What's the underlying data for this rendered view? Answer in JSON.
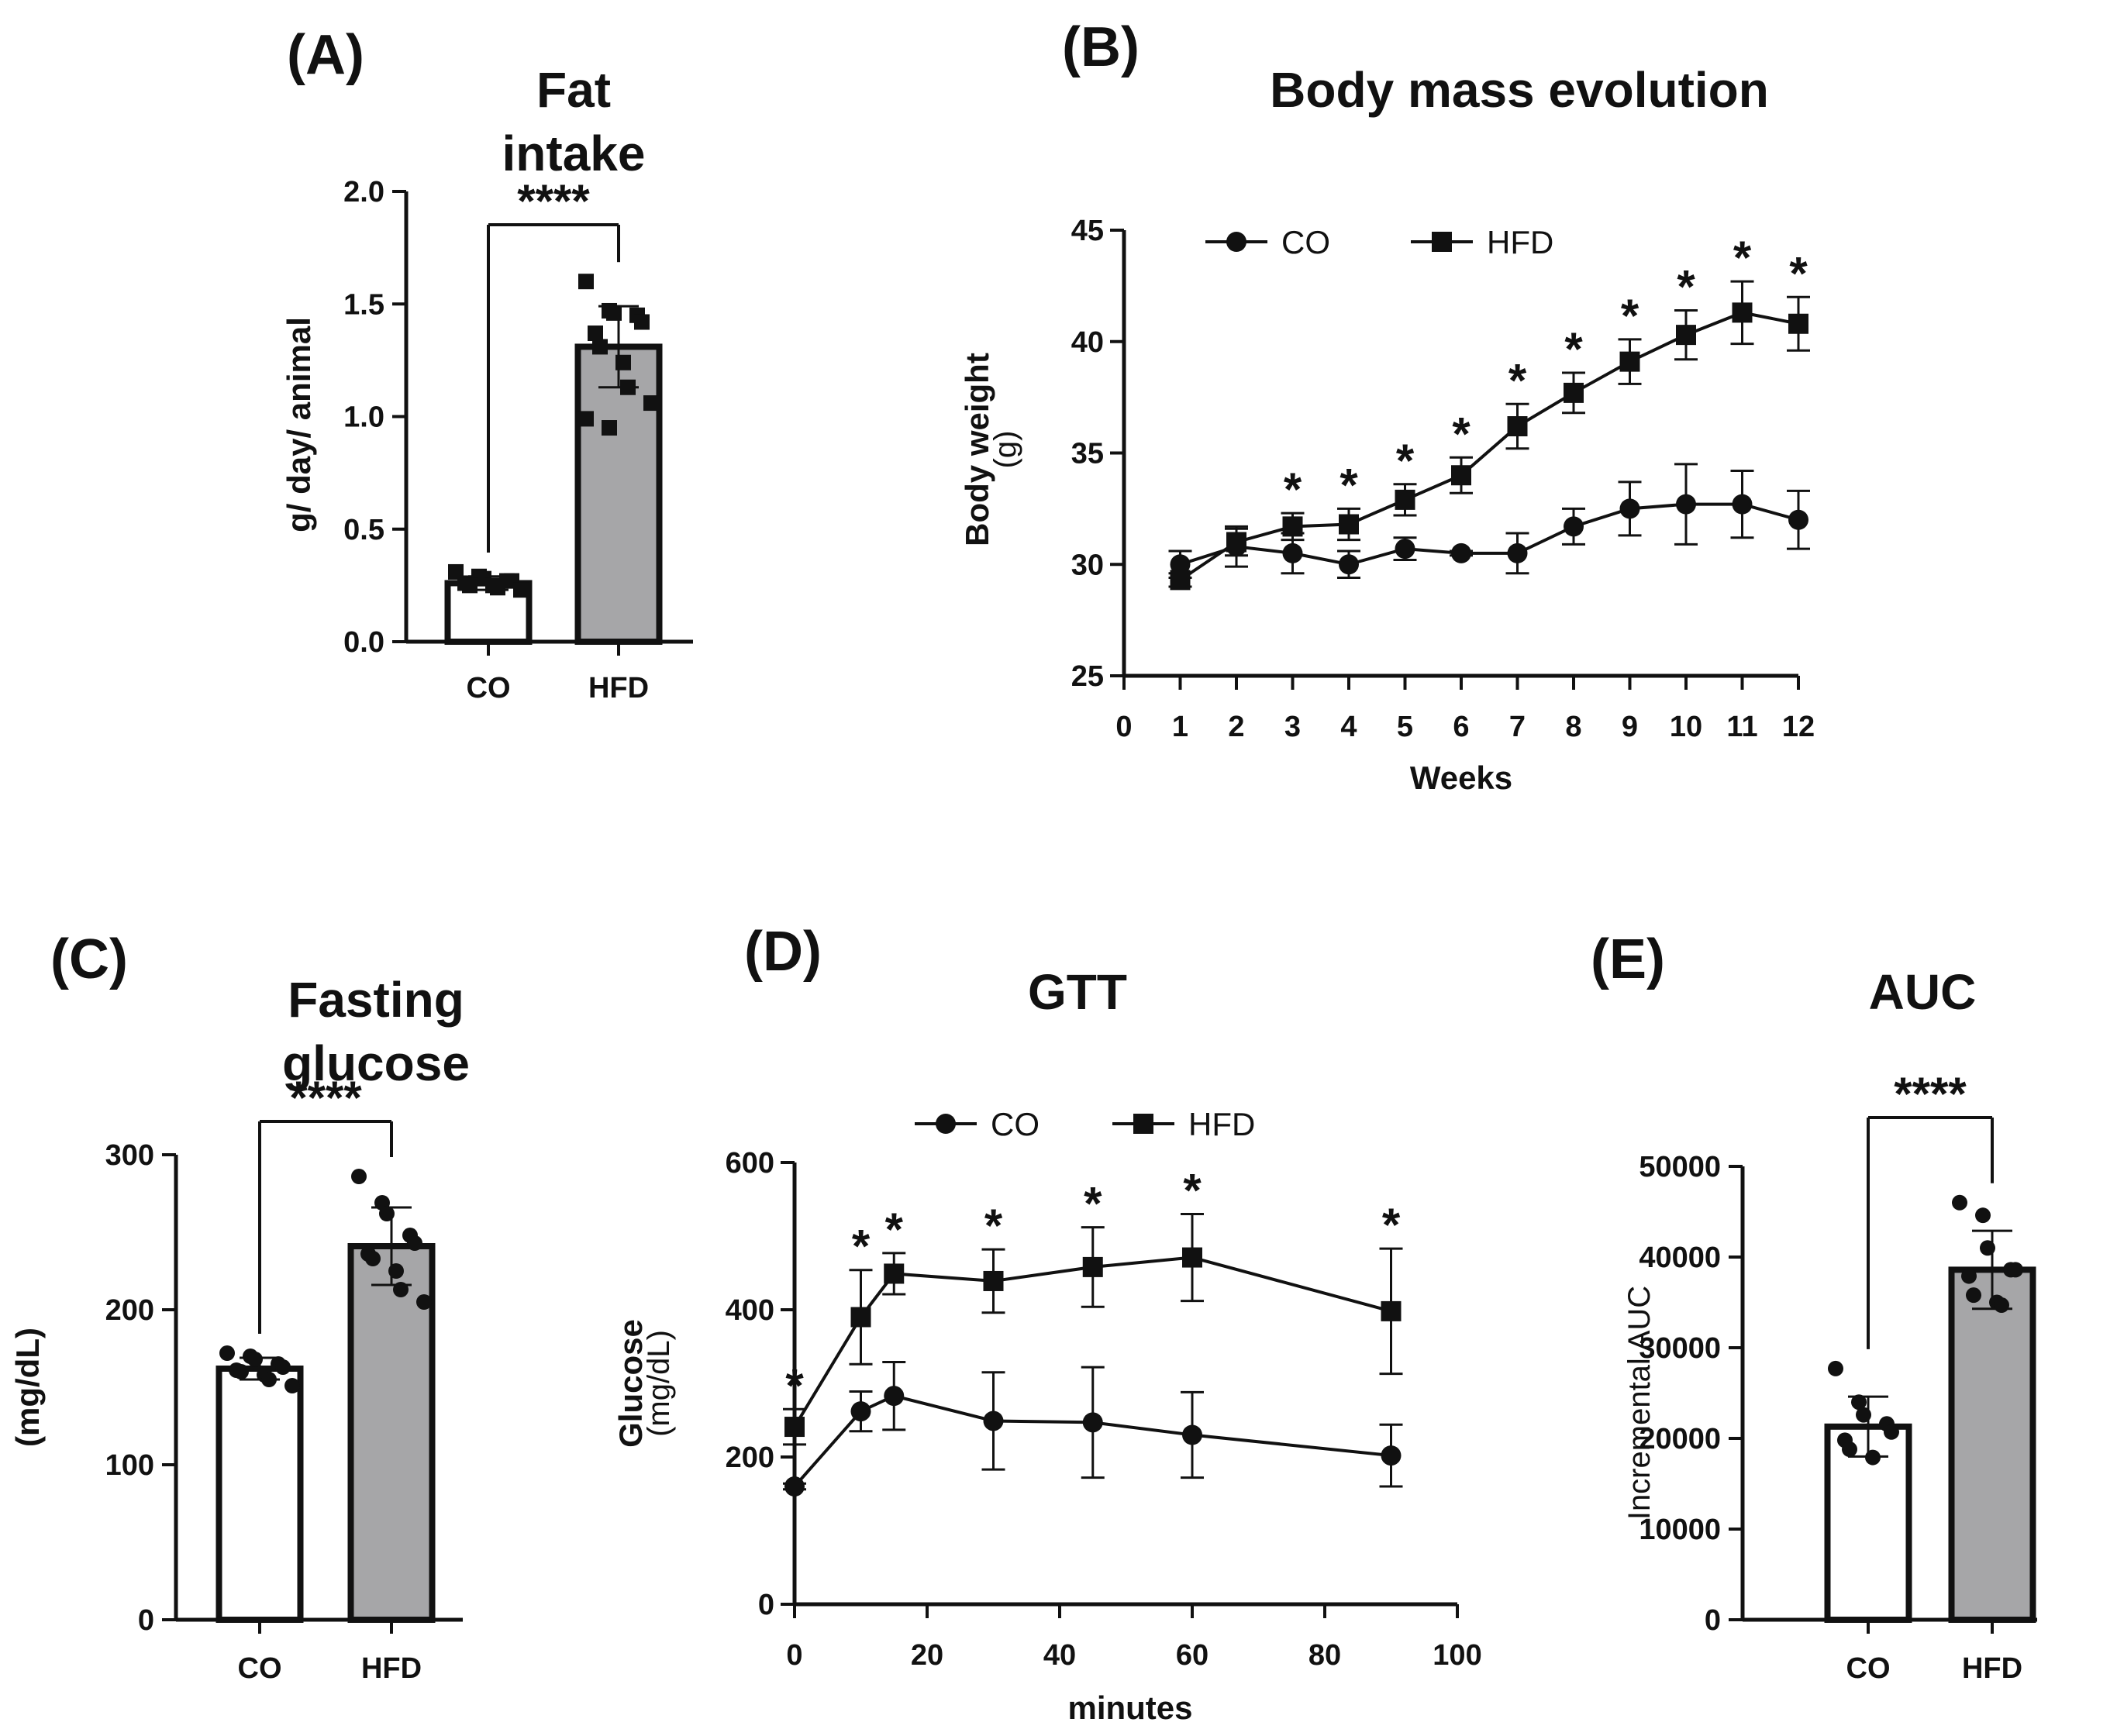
{
  "figure": {
    "panels": [
      "(A)",
      "(B)",
      "(C)",
      "(D)",
      "(E)"
    ]
  },
  "chart_data": [
    {
      "id": "A",
      "type": "bar",
      "panel_label": "(A)",
      "title_lines": [
        "Fat",
        "intake"
      ],
      "categories": [
        "CO",
        "HFD"
      ],
      "values": [
        0.26,
        1.31
      ],
      "sd": [
        0.03,
        0.18
      ],
      "points": [
        [
          0.31,
          0.29,
          0.28,
          0.27,
          0.27,
          0.26,
          0.25,
          0.25,
          0.24,
          0.23
        ],
        [
          1.6,
          1.47,
          1.46,
          1.45,
          1.42,
          1.37,
          1.31,
          1.24,
          1.13,
          1.06,
          0.99,
          0.95
        ]
      ],
      "bar_colors": [
        "#ffffff",
        "#a6a6a8"
      ],
      "ylabel": "g/ day/ animal",
      "ylim": [
        0,
        2.0
      ],
      "yticks": [
        0,
        0.5,
        1.0,
        1.5,
        2.0
      ],
      "ytick_labels": [
        "0.0",
        "0.5",
        "1.0",
        "1.5",
        "2.0"
      ],
      "significance": "****",
      "marker": "square"
    },
    {
      "id": "B",
      "type": "line",
      "panel_label": "(B)",
      "title": "Body mass evolution",
      "xlabel": "Weeks",
      "ylabel": "Body weight",
      "ylabel_unit": "(g)",
      "xlim": [
        0,
        12
      ],
      "ylim": [
        25,
        45
      ],
      "xticks": [
        0,
        1,
        2,
        3,
        4,
        5,
        6,
        7,
        8,
        9,
        10,
        11,
        12
      ],
      "yticks": [
        25,
        30,
        35,
        40,
        45
      ],
      "series": [
        {
          "name": "CO",
          "marker": "circle",
          "x": [
            1,
            2,
            3,
            4,
            5,
            6,
            7,
            8,
            9,
            10,
            11,
            12
          ],
          "y": [
            30.0,
            30.8,
            30.5,
            30.0,
            30.7,
            30.5,
            30.5,
            31.7,
            32.5,
            32.7,
            32.7,
            32.0
          ],
          "err": [
            0.6,
            0.9,
            0.9,
            0.6,
            0.5,
            0.1,
            0.9,
            0.8,
            1.2,
            1.8,
            1.5,
            1.3
          ]
        },
        {
          "name": "HFD",
          "marker": "square",
          "x": [
            1,
            2,
            3,
            4,
            5,
            6,
            7,
            8,
            9,
            10,
            11,
            12
          ],
          "y": [
            29.3,
            31.0,
            31.7,
            31.8,
            32.9,
            34.0,
            36.2,
            37.7,
            39.1,
            40.3,
            41.3,
            40.8
          ],
          "err": [
            0.3,
            0.6,
            0.6,
            0.7,
            0.7,
            0.8,
            1.0,
            0.9,
            1.0,
            1.1,
            1.4,
            1.2
          ]
        }
      ],
      "significance_x": [
        3,
        4,
        5,
        6,
        7,
        8,
        9,
        10,
        11,
        12
      ],
      "significance": "*",
      "legend": "top"
    },
    {
      "id": "C",
      "type": "bar",
      "panel_label": "(C)",
      "title_lines": [
        "Fasting",
        "glucose"
      ],
      "categories": [
        "CO",
        "HFD"
      ],
      "values": [
        162,
        241
      ],
      "sd": [
        7,
        25
      ],
      "points": [
        [
          172,
          170,
          168,
          165,
          163,
          161,
          160,
          158,
          155,
          151
        ],
        [
          286,
          269,
          262,
          248,
          243,
          236,
          233,
          225,
          213,
          205
        ]
      ],
      "bar_colors": [
        "#ffffff",
        "#a6a6a8"
      ],
      "ylabel": "(mg/dL)",
      "ylim": [
        0,
        300
      ],
      "yticks": [
        0,
        100,
        200,
        300
      ],
      "ytick_labels": [
        "0",
        "100",
        "200",
        "300"
      ],
      "significance": "****",
      "marker": "circle"
    },
    {
      "id": "D",
      "type": "line",
      "panel_label": "(D)",
      "title": "GTT",
      "xlabel": "minutes",
      "ylabel": "Glucose",
      "ylabel_unit": "(mg/dL)",
      "xlim": [
        0,
        100
      ],
      "ylim": [
        0,
        600
      ],
      "xticks": [
        0,
        20,
        40,
        60,
        80,
        100
      ],
      "yticks": [
        0,
        200,
        400,
        600
      ],
      "series": [
        {
          "name": "CO",
          "marker": "circle",
          "x": [
            0,
            10,
            15,
            30,
            45,
            60,
            90
          ],
          "y": [
            160,
            262,
            283,
            249,
            247,
            230,
            202
          ],
          "err": [
            4,
            27,
            46,
            66,
            75,
            58,
            42
          ]
        },
        {
          "name": "HFD",
          "marker": "square",
          "x": [
            0,
            10,
            15,
            30,
            45,
            60,
            90
          ],
          "y": [
            241,
            390,
            449,
            439,
            458,
            471,
            398
          ],
          "err": [
            24,
            64,
            28,
            43,
            54,
            59,
            85
          ]
        }
      ],
      "significance_x": [
        0,
        10,
        15,
        30,
        45,
        60,
        90
      ],
      "significance": "*",
      "legend": "top"
    },
    {
      "id": "E",
      "type": "bar",
      "panel_label": "(E)",
      "title": "AUC",
      "categories": [
        "CO",
        "HFD"
      ],
      "values": [
        21300,
        38600
      ],
      "sd": [
        3300,
        4300
      ],
      "points": [
        [
          27700,
          24000,
          22600,
          21600,
          20700,
          19800,
          18800,
          17900
        ],
        [
          46000,
          44600,
          41000,
          38600,
          38600,
          37900,
          35800,
          35000,
          34700
        ]
      ],
      "bar_colors": [
        "#ffffff",
        "#a6a6a8"
      ],
      "ylabel": "Incremental AUC",
      "ylim": [
        0,
        50000
      ],
      "yticks": [
        0,
        10000,
        20000,
        30000,
        40000,
        50000
      ],
      "ytick_labels": [
        "0",
        "10000",
        "20000",
        "30000",
        "40000",
        "50000"
      ],
      "significance": "****",
      "marker": "circle"
    }
  ]
}
